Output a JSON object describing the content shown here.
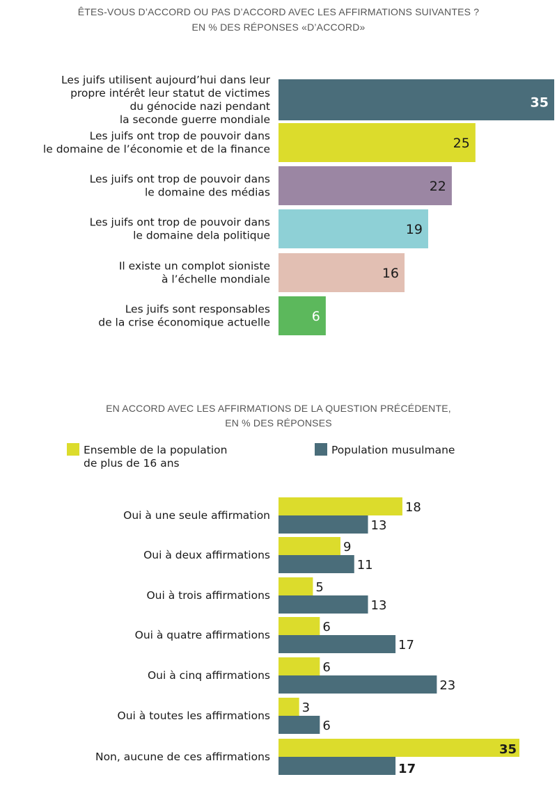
{
  "chart_data": [
    {
      "type": "bar",
      "orientation": "horizontal",
      "title": [
        "ÊTES-VOUS D’ACCORD OU PAS D’ACCORD AVEC LES AFFIRMATIONS SUIVANTES ?",
        "EN % DES RÉPONSES «D’ACCORD»"
      ],
      "categories": [
        [
          "Les juifs utilisent aujourd’hui dans leur",
          "propre intérêt leur statut de victimes",
          "du génocide nazi pendant",
          "la seconde guerre mondiale"
        ],
        [
          "Les juifs ont trop de pouvoir dans",
          "le domaine de l’économie et de la finance"
        ],
        [
          "Les juifs ont trop de pouvoir dans",
          "le domaine des médias"
        ],
        [
          "Les juifs ont trop de pouvoir dans",
          "le domaine dela politique"
        ],
        [
          "Il existe un complot sioniste",
          "à l’échelle mondiale"
        ],
        [
          "Les juifs sont responsables",
          "de la crise économique actuelle"
        ]
      ],
      "values": [
        35,
        25,
        22,
        19,
        16,
        6
      ],
      "colors": [
        "#4a6d7a",
        "#dcdc2c",
        "#9b86a3",
        "#8ed0d6",
        "#e2bfb3",
        "#5cb85c"
      ],
      "label_colors": [
        "#ffffff",
        "#1a1a1a",
        "#1a1a1a",
        "#1a1a1a",
        "#1a1a1a",
        "#ffffff"
      ],
      "xlim": [
        0,
        35
      ],
      "grid": false
    },
    {
      "type": "bar",
      "orientation": "horizontal",
      "title": [
        "EN ACCORD AVEC LES AFFIRMATIONS DE LA QUESTION PRÉCÉDENTE,",
        "EN % DES RÉPONSES"
      ],
      "categories": [
        "Oui à une seule affirmation",
        "Oui à deux affirmations",
        "Oui à trois affirmations",
        "Oui à quatre affirmations",
        "Oui à cinq affirmations",
        "Oui à toutes les affirmations",
        "Non, aucune de ces affirmations"
      ],
      "series": [
        {
          "name": [
            "Ensemble de la population",
            "de plus de 16 ans"
          ],
          "color": "#dcdc2c",
          "values": [
            18,
            9,
            5,
            6,
            6,
            3,
            35
          ]
        },
        {
          "name": [
            "Population musulmane"
          ],
          "color": "#4a6d7a",
          "values": [
            13,
            11,
            13,
            17,
            23,
            6,
            17
          ]
        }
      ],
      "xlim": [
        0,
        35
      ],
      "legend_position": "top",
      "grid": false
    }
  ]
}
